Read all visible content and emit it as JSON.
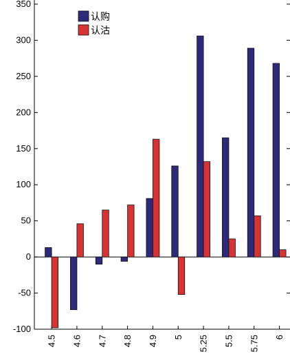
{
  "chart_data": {
    "type": "bar",
    "categories": [
      "4.5",
      "4.6",
      "4.7",
      "4.8",
      "4.9",
      "5",
      "5.25",
      "5.5",
      "5.75",
      "6"
    ],
    "series": [
      {
        "name": "认购",
        "color": "#2e2a7a",
        "values": [
          13,
          -73,
          -10,
          -6,
          81,
          126,
          306,
          165,
          289,
          268
        ]
      },
      {
        "name": "认沽",
        "color": "#d63434",
        "values": [
          -98,
          46,
          65,
          72,
          163,
          -52,
          132,
          25,
          57,
          10
        ]
      }
    ],
    "y_ticks": [
      "-100",
      "-50",
      "0",
      "50",
      "100",
      "150",
      "200",
      "250",
      "300",
      "350"
    ],
    "ylim": [
      -100,
      350
    ],
    "legend": "top-left",
    "grid": false
  }
}
